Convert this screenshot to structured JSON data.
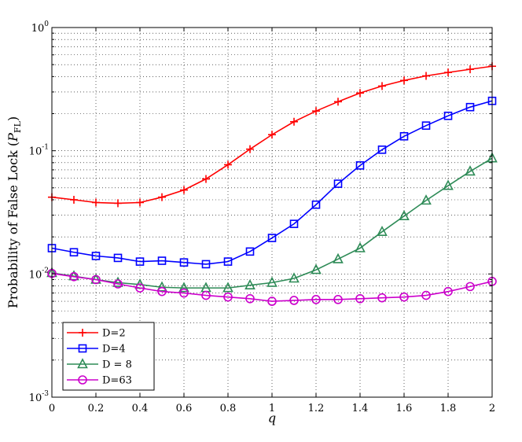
{
  "chart_data": {
    "type": "line",
    "ylog": true,
    "grid": true,
    "xlabel": "q",
    "ylabel": {
      "main": "Probability of False Lock (",
      "sym": "P",
      "sub": "FL",
      "close": ")"
    },
    "xlim": [
      0,
      2
    ],
    "ylim": [
      0.001,
      1
    ],
    "x_ticks": [
      "0",
      "0.2",
      "0.4",
      "0.6",
      "0.8",
      "1",
      "1.2",
      "1.4",
      "1.6",
      "1.8",
      "2"
    ],
    "y_ticks": [
      {
        "base": "10",
        "exp": "0"
      },
      {
        "base": "10",
        "exp": "-1"
      },
      {
        "base": "10",
        "exp": "-2"
      },
      {
        "base": "10",
        "exp": "-3"
      }
    ],
    "legend_position": "lower-left",
    "x": [
      0,
      0.1,
      0.2,
      0.3,
      0.4,
      0.5,
      0.6,
      0.7,
      0.8,
      0.9,
      1.0,
      1.1,
      1.2,
      1.3,
      1.4,
      1.5,
      1.6,
      1.7,
      1.8,
      1.9,
      2.0
    ],
    "series": [
      {
        "name": "D=2",
        "color": "#ff0000",
        "marker": "plus",
        "values": [
          0.042,
          0.04,
          0.038,
          0.0375,
          0.038,
          0.042,
          0.048,
          0.059,
          0.077,
          0.103,
          0.135,
          0.172,
          0.21,
          0.25,
          0.294,
          0.335,
          0.372,
          0.405,
          0.432,
          0.458,
          0.485
        ]
      },
      {
        "name": "D=4",
        "color": "#0000ff",
        "marker": "square",
        "values": [
          0.0162,
          0.015,
          0.014,
          0.0135,
          0.0126,
          0.0128,
          0.0124,
          0.012,
          0.0126,
          0.0152,
          0.0196,
          0.0255,
          0.0365,
          0.054,
          0.076,
          0.102,
          0.131,
          0.16,
          0.192,
          0.226,
          0.254
        ]
      },
      {
        "name": "D = 8",
        "color": "#2e8b57",
        "marker": "triangle",
        "values": [
          0.0102,
          0.0096,
          0.009,
          0.0085,
          0.0082,
          0.0078,
          0.0077,
          0.0077,
          0.0077,
          0.0081,
          0.0085,
          0.0092,
          0.0108,
          0.0132,
          0.0162,
          0.022,
          0.0295,
          0.0395,
          0.052,
          0.068,
          0.087
        ]
      },
      {
        "name": "D=63",
        "color": "#cc00cc",
        "marker": "circle",
        "values": [
          0.0101,
          0.0095,
          0.009,
          0.0083,
          0.0077,
          0.0072,
          0.007,
          0.0067,
          0.0065,
          0.0063,
          0.006,
          0.0061,
          0.0062,
          0.0062,
          0.0063,
          0.0064,
          0.0065,
          0.0067,
          0.0072,
          0.0079,
          0.0087
        ]
      }
    ]
  }
}
